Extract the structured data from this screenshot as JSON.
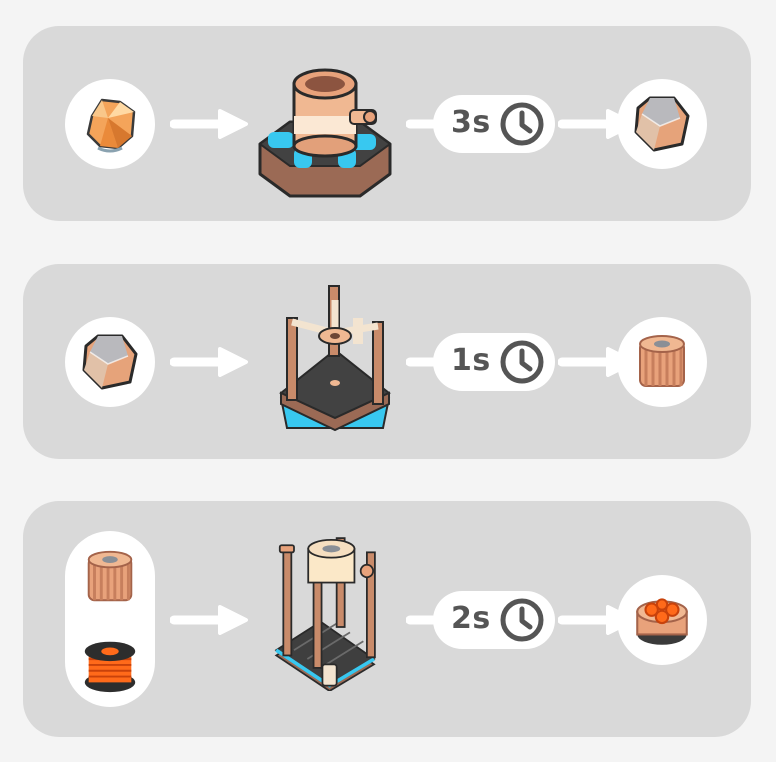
{
  "recipes": [
    {
      "input_icons": [
        "raw-ore-icon"
      ],
      "machine_icon": "crusher-machine-icon",
      "time": "3s",
      "output_icon": "stone-chunk-icon"
    },
    {
      "input_icons": [
        "stone-chunk-icon"
      ],
      "machine_icon": "press-machine-icon",
      "time": "1s",
      "output_icon": "gear-cylinder-icon"
    },
    {
      "input_icons": [
        "gear-cylinder-icon",
        "copper-coil-icon"
      ],
      "machine_icon": "assembler-machine-icon",
      "time": "2s",
      "output_icon": "motor-part-icon"
    }
  ],
  "colors": {
    "panel": "#d9d9d9",
    "background": "#f4f4f4",
    "copper": "#e4a77f",
    "cyan": "#38c8f0",
    "dark_text": "#555555"
  }
}
